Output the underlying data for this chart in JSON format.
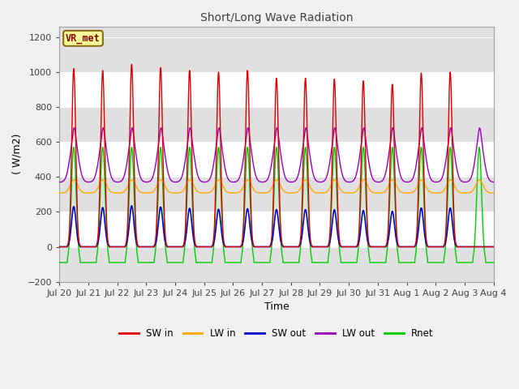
{
  "title": "Short/Long Wave Radiation",
  "xlabel": "Time",
  "ylabel": "( W/m2)",
  "ylim": [
    -200,
    1260
  ],
  "yticks": [
    -200,
    0,
    200,
    400,
    600,
    800,
    1000,
    1200
  ],
  "figure_bg": "#f0f0f0",
  "plot_bg_light": "#ffffff",
  "plot_bg_dark": "#e0e0e0",
  "annotation_text": "VR_met",
  "annotation_box_color": "#ffff99",
  "annotation_border_color": "#8b6914",
  "series": {
    "SW_in": {
      "color": "#dd0000",
      "label": "SW in"
    },
    "LW_in": {
      "color": "#ffa500",
      "label": "LW in"
    },
    "SW_out": {
      "color": "#0000cc",
      "label": "SW out"
    },
    "LW_out": {
      "color": "#9900bb",
      "label": "LW out"
    },
    "Rnet": {
      "color": "#00cc00",
      "label": "Rnet"
    }
  },
  "n_days": 15,
  "points_per_day": 288,
  "day_labels": [
    "Jul 20",
    "Jul 21",
    "Jul 22",
    "Jul 23",
    "Jul 24",
    "Jul 25",
    "Jul 26",
    "Jul 27",
    "Jul 28",
    "Jul 29",
    "Jul 30",
    "Jul 31",
    "Aug 1",
    "Aug 2",
    "Aug 3",
    "Aug 4"
  ],
  "legend_entries": [
    {
      "label": "SW in",
      "color": "#dd0000"
    },
    {
      "label": "LW in",
      "color": "#ffa500"
    },
    {
      "label": "SW out",
      "color": "#0000cc"
    },
    {
      "label": "LW out",
      "color": "#9900bb"
    },
    {
      "label": "Rnet",
      "color": "#00cc00"
    }
  ],
  "sw_in_peaks": [
    1020,
    1010,
    1045,
    1025,
    1010,
    1000,
    1010,
    965,
    965,
    960,
    950,
    930,
    995,
    1000,
    0
  ],
  "sw_out_peaks": [
    230,
    225,
    235,
    228,
    220,
    215,
    218,
    213,
    213,
    212,
    208,
    203,
    222,
    222,
    0
  ],
  "lw_in_base": 308,
  "lw_in_amp": 75,
  "lw_out_base": 370,
  "lw_out_amp": 255,
  "rnet_base": -90,
  "rnet_amp": 660
}
